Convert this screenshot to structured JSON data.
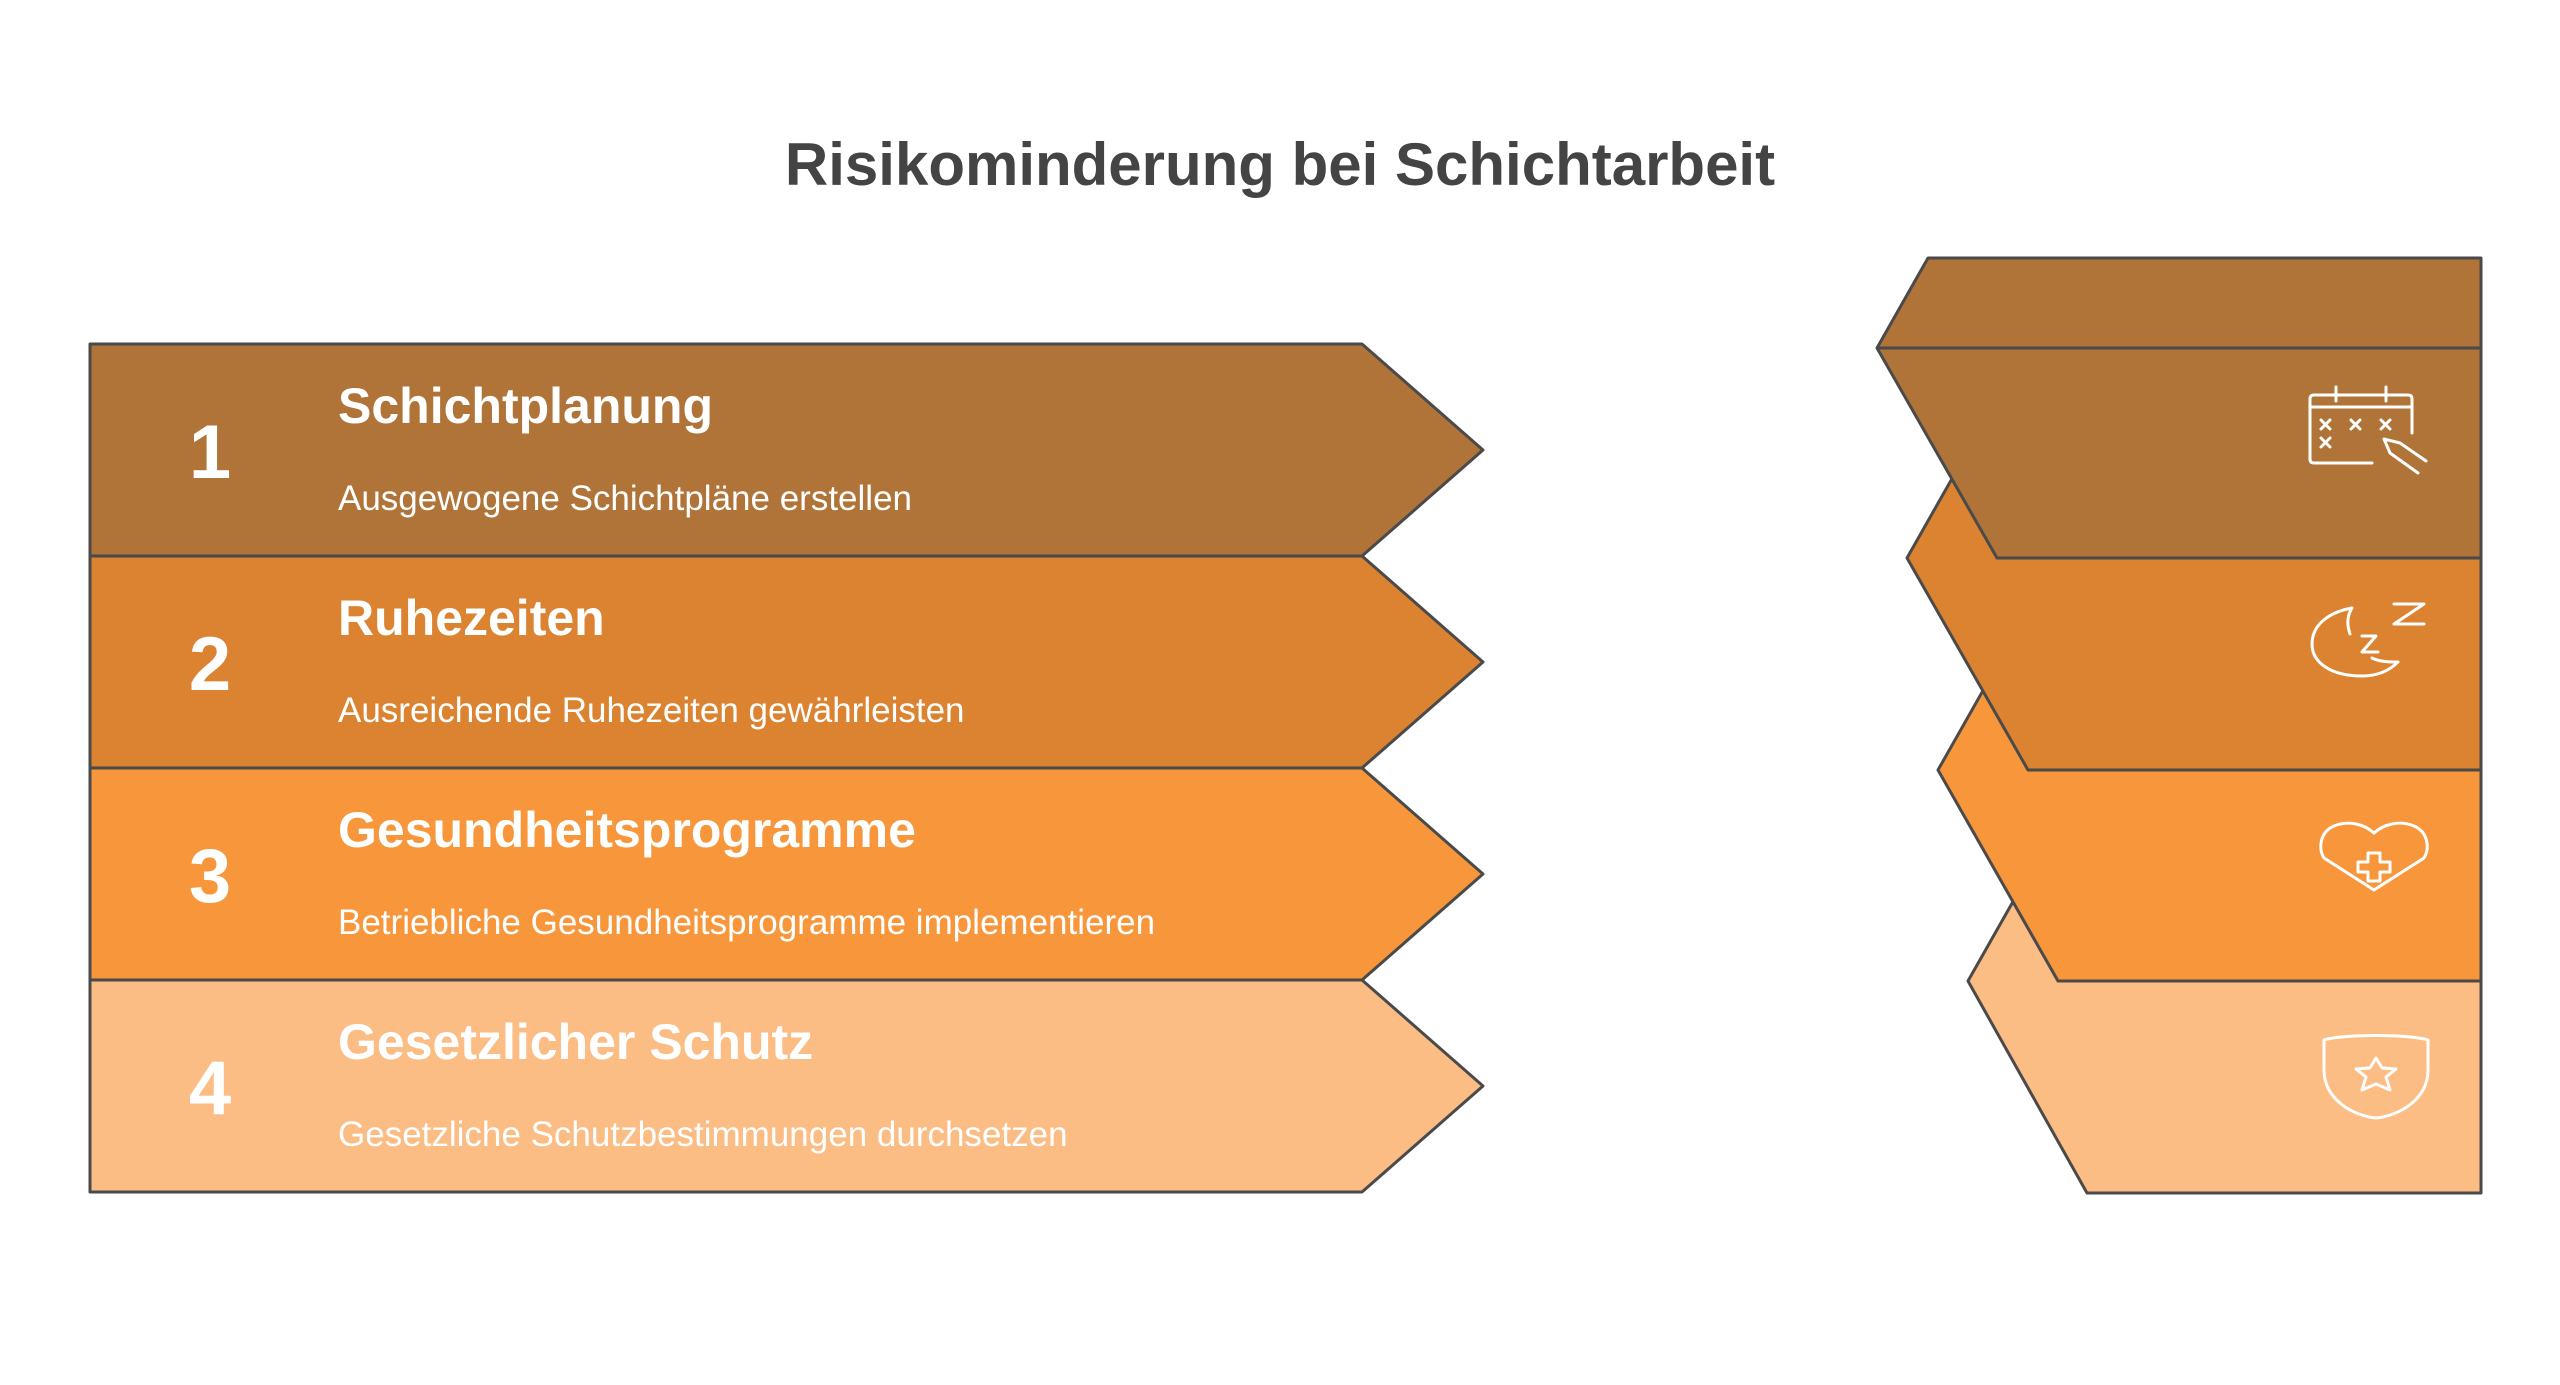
{
  "title": "Risikominderung bei Schichtarbeit",
  "steps": [
    {
      "number": "1",
      "title": "Schichtplanung",
      "description": "Ausgewogene Schichtpläne erstellen",
      "color": "#B07338",
      "icon": "calendar-pencil-icon"
    },
    {
      "number": "2",
      "title": "Ruhezeiten",
      "description": "Ausreichende Ruhezeiten gewährleisten",
      "color": "#DB8330",
      "icon": "moon-sleep-icon"
    },
    {
      "number": "3",
      "title": "Gesundheitsprogramme",
      "description": "Betriebliche Gesundheitsprogramme implementieren",
      "color": "#F7963A",
      "icon": "heart-cross-icon"
    },
    {
      "number": "4",
      "title": "Gesetzlicher Schutz",
      "description": "Gesetzliche Schutzbestimmungen durchsetzen",
      "color": "#FBBD84",
      "icon": "shield-star-icon"
    }
  ]
}
